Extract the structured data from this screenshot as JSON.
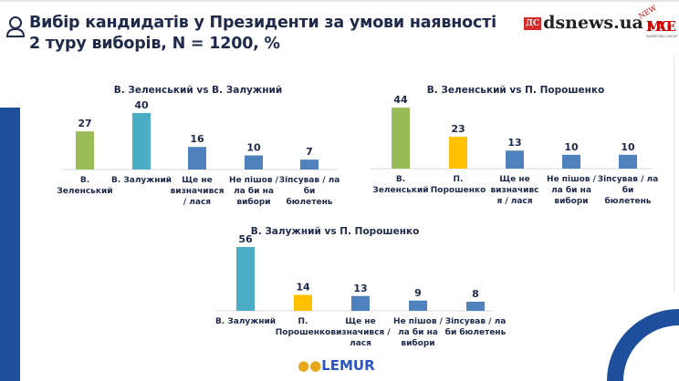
{
  "header": {
    "title": "Вибір кандидатів у Президенти за умови наявності 2 туру виборів, N = 1200, %",
    "icon": "person-icon"
  },
  "logos": {
    "dsnews": "dsnews.ua",
    "dsnews_badge": "ДС",
    "image_logo": "NEW IMAGE MARKETING GROUP",
    "lemur": "LEMUR"
  },
  "colors": {
    "zelensky": "#9bbb59",
    "zaluzhny": "#4bacc6",
    "poroshenko": "#ffc000",
    "other": "#4f81bd",
    "decor_blue": "#1e4f9c"
  },
  "chart_data": [
    {
      "type": "bar",
      "title": "В. Зеленський vs В. Залужний",
      "categories": [
        "В. Зеленський",
        "В. Залужний",
        "Ще не визначився / лася",
        "Не пішов / ла би на вибори",
        "Зіпсував / ла би бюлетень"
      ],
      "category_lines": [
        [
          "В.",
          "Зеленський"
        ],
        [
          "В. Залужний"
        ],
        [
          "Ще не",
          "визначився",
          "/ лася"
        ],
        [
          "Не пішов /",
          "ла би на",
          "вибори"
        ],
        [
          "Зіпсував / ла",
          "би",
          "бюлетень"
        ]
      ],
      "values": [
        27,
        40,
        16,
        10,
        7
      ],
      "colors": [
        "#9bbb59",
        "#4bacc6",
        "#4f81bd",
        "#4f81bd",
        "#4f81bd"
      ]
    },
    {
      "type": "bar",
      "title": "В. Зеленський vs П. Порошенко",
      "categories": [
        "В. Зеленський",
        "П. Порошенко",
        "Ще не визначився / лася",
        "Не пішов / ла би на вибори",
        "Зіпсував / ла би бюлетень"
      ],
      "category_lines": [
        [
          "В.",
          "Зеленський"
        ],
        [
          "П.",
          "Порошенко"
        ],
        [
          "Ще не",
          "визначивс",
          "я / лася"
        ],
        [
          "Не пішов /",
          "ла би на",
          "вибори"
        ],
        [
          "Зіпсував / ла",
          "би",
          "бюлетень"
        ]
      ],
      "values": [
        44,
        23,
        13,
        10,
        10
      ],
      "colors": [
        "#9bbb59",
        "#ffc000",
        "#4f81bd",
        "#4f81bd",
        "#4f81bd"
      ]
    },
    {
      "type": "bar",
      "title": "В. Залужний vs П. Порошенко",
      "categories": [
        "В. Залужний",
        "П. Порошенко",
        "Ще не визначився / лася",
        "Не пішов / ла би на вибори",
        "Зіпсував / ла би бюлетень"
      ],
      "category_lines": [
        [
          "В. Залужний"
        ],
        [
          "П.",
          "Порошенко"
        ],
        [
          "Ще не",
          "визначився /",
          "лася"
        ],
        [
          "Не пішов /",
          "ла би на",
          "вибори"
        ],
        [
          "Зіпсував / ла",
          "би бюлетень"
        ]
      ],
      "values": [
        56,
        14,
        13,
        9,
        8
      ],
      "colors": [
        "#4bacc6",
        "#ffc000",
        "#4f81bd",
        "#4f81bd",
        "#4f81bd"
      ]
    }
  ]
}
